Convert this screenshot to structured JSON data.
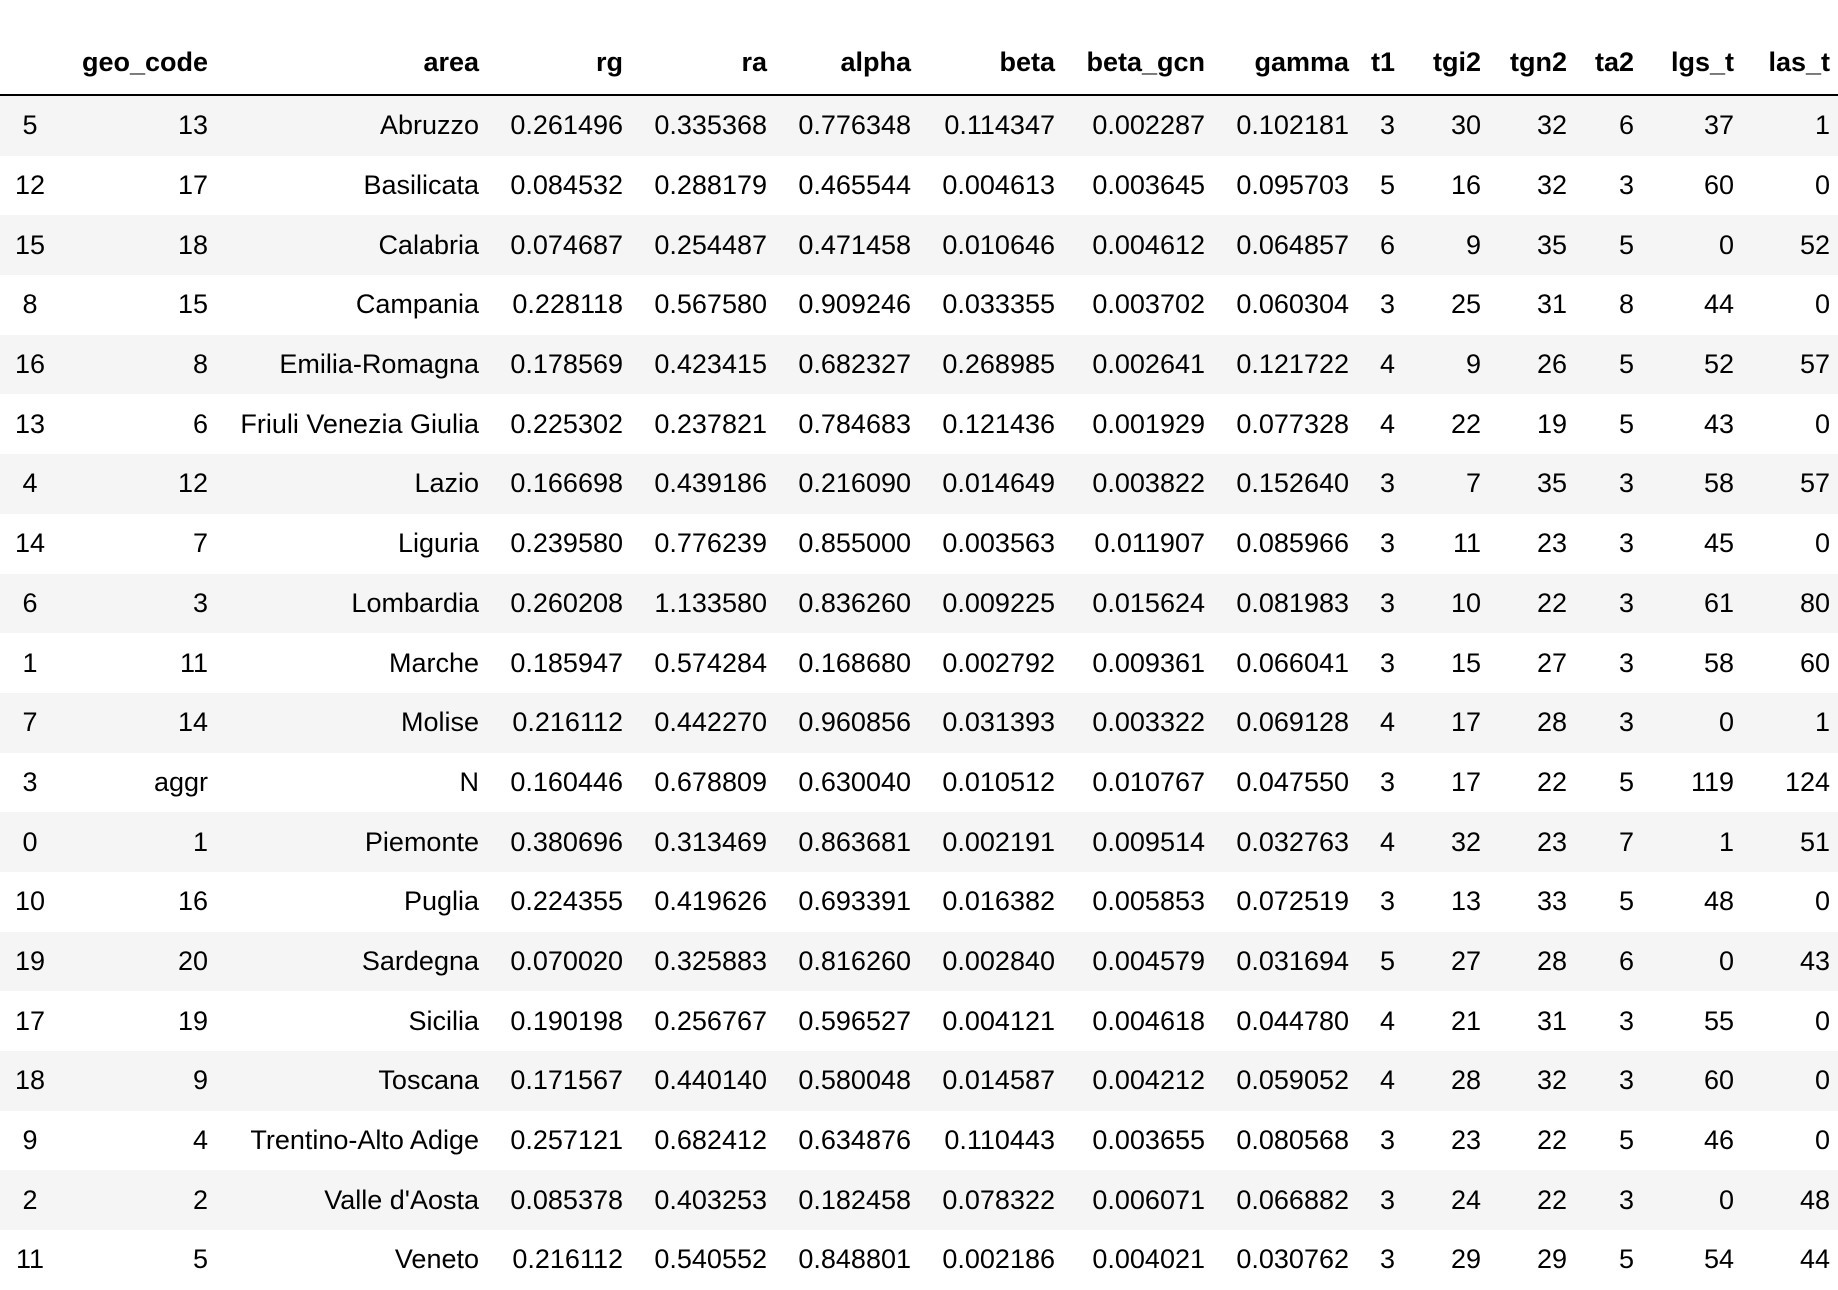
{
  "table": {
    "columns": [
      "",
      "geo_code",
      "area",
      "rg",
      "ra",
      "alpha",
      "beta",
      "beta_gcn",
      "gamma",
      "t1",
      "tgi2",
      "tgn2",
      "ta2",
      "lgs_t",
      "las_t"
    ],
    "rows": [
      [
        "5",
        "13",
        "Abruzzo",
        "0.261496",
        "0.335368",
        "0.776348",
        "0.114347",
        "0.002287",
        "0.102181",
        "3",
        "30",
        "32",
        "6",
        "37",
        "1"
      ],
      [
        "12",
        "17",
        "Basilicata",
        "0.084532",
        "0.288179",
        "0.465544",
        "0.004613",
        "0.003645",
        "0.095703",
        "5",
        "16",
        "32",
        "3",
        "60",
        "0"
      ],
      [
        "15",
        "18",
        "Calabria",
        "0.074687",
        "0.254487",
        "0.471458",
        "0.010646",
        "0.004612",
        "0.064857",
        "6",
        "9",
        "35",
        "5",
        "0",
        "52"
      ],
      [
        "8",
        "15",
        "Campania",
        "0.228118",
        "0.567580",
        "0.909246",
        "0.033355",
        "0.003702",
        "0.060304",
        "3",
        "25",
        "31",
        "8",
        "44",
        "0"
      ],
      [
        "16",
        "8",
        "Emilia-Romagna",
        "0.178569",
        "0.423415",
        "0.682327",
        "0.268985",
        "0.002641",
        "0.121722",
        "4",
        "9",
        "26",
        "5",
        "52",
        "57"
      ],
      [
        "13",
        "6",
        "Friuli Venezia Giulia",
        "0.225302",
        "0.237821",
        "0.784683",
        "0.121436",
        "0.001929",
        "0.077328",
        "4",
        "22",
        "19",
        "5",
        "43",
        "0"
      ],
      [
        "4",
        "12",
        "Lazio",
        "0.166698",
        "0.439186",
        "0.216090",
        "0.014649",
        "0.003822",
        "0.152640",
        "3",
        "7",
        "35",
        "3",
        "58",
        "57"
      ],
      [
        "14",
        "7",
        "Liguria",
        "0.239580",
        "0.776239",
        "0.855000",
        "0.003563",
        "0.011907",
        "0.085966",
        "3",
        "11",
        "23",
        "3",
        "45",
        "0"
      ],
      [
        "6",
        "3",
        "Lombardia",
        "0.260208",
        "1.133580",
        "0.836260",
        "0.009225",
        "0.015624",
        "0.081983",
        "3",
        "10",
        "22",
        "3",
        "61",
        "80"
      ],
      [
        "1",
        "11",
        "Marche",
        "0.185947",
        "0.574284",
        "0.168680",
        "0.002792",
        "0.009361",
        "0.066041",
        "3",
        "15",
        "27",
        "3",
        "58",
        "60"
      ],
      [
        "7",
        "14",
        "Molise",
        "0.216112",
        "0.442270",
        "0.960856",
        "0.031393",
        "0.003322",
        "0.069128",
        "4",
        "17",
        "28",
        "3",
        "0",
        "1"
      ],
      [
        "3",
        "aggr",
        "N",
        "0.160446",
        "0.678809",
        "0.630040",
        "0.010512",
        "0.010767",
        "0.047550",
        "3",
        "17",
        "22",
        "5",
        "119",
        "124"
      ],
      [
        "0",
        "1",
        "Piemonte",
        "0.380696",
        "0.313469",
        "0.863681",
        "0.002191",
        "0.009514",
        "0.032763",
        "4",
        "32",
        "23",
        "7",
        "1",
        "51"
      ],
      [
        "10",
        "16",
        "Puglia",
        "0.224355",
        "0.419626",
        "0.693391",
        "0.016382",
        "0.005853",
        "0.072519",
        "3",
        "13",
        "33",
        "5",
        "48",
        "0"
      ],
      [
        "19",
        "20",
        "Sardegna",
        "0.070020",
        "0.325883",
        "0.816260",
        "0.002840",
        "0.004579",
        "0.031694",
        "5",
        "27",
        "28",
        "6",
        "0",
        "43"
      ],
      [
        "17",
        "19",
        "Sicilia",
        "0.190198",
        "0.256767",
        "0.596527",
        "0.004121",
        "0.004618",
        "0.044780",
        "4",
        "21",
        "31",
        "3",
        "55",
        "0"
      ],
      [
        "18",
        "9",
        "Toscana",
        "0.171567",
        "0.440140",
        "0.580048",
        "0.014587",
        "0.004212",
        "0.059052",
        "4",
        "28",
        "32",
        "3",
        "60",
        "0"
      ],
      [
        "9",
        "4",
        "Trentino-Alto Adige",
        "0.257121",
        "0.682412",
        "0.634876",
        "0.110443",
        "0.003655",
        "0.080568",
        "3",
        "23",
        "22",
        "5",
        "46",
        "0"
      ],
      [
        "2",
        "2",
        "Valle d'Aosta",
        "0.085378",
        "0.403253",
        "0.182458",
        "0.078322",
        "0.006071",
        "0.066882",
        "3",
        "24",
        "22",
        "3",
        "0",
        "48"
      ],
      [
        "11",
        "5",
        "Veneto",
        "0.216112",
        "0.540552",
        "0.848801",
        "0.002186",
        "0.004021",
        "0.030762",
        "3",
        "29",
        "29",
        "5",
        "54",
        "44"
      ]
    ]
  }
}
